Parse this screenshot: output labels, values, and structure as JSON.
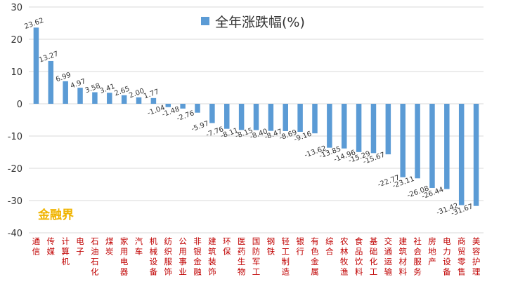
{
  "chart_data": {
    "type": "bar",
    "title": "全年涨跌幅(%)",
    "legend": {
      "label": "全年涨跌幅(%)",
      "placement": "top-center"
    },
    "watermark": "金融界",
    "colors": {
      "bar": "#5b9bd5",
      "category_text": "#c00000",
      "watermark": "#f0b400",
      "grid": "#d9d9d9"
    },
    "ylim": [
      -40,
      30
    ],
    "yticks": [
      30,
      20,
      10,
      0,
      -10,
      -20,
      -30,
      -40
    ],
    "grid": true,
    "categories": [
      "通信",
      "传媒",
      "计算机",
      "电子",
      "石油石化",
      "煤炭",
      "家用电器",
      "汽车",
      "机械设备",
      "纺织服饰",
      "公用事业",
      "非银金融",
      "建筑装饰",
      "环保",
      "医药生物",
      "国防军工",
      "钢铁",
      "轻工制造",
      "银行",
      "有色金属",
      "综合",
      "农林牧渔",
      "食品饮料",
      "基础化工",
      "交通运输",
      "建筑材料",
      "社会服务",
      "房地产",
      "电力设备",
      "商贸零售",
      "美容护理"
    ],
    "values": [
      23.62,
      13.27,
      6.99,
      4.97,
      3.58,
      3.41,
      2.65,
      2.0,
      1.77,
      -1.04,
      -1.48,
      -2.76,
      -5.97,
      -7.76,
      -8.11,
      -8.15,
      -8.4,
      -8.47,
      -8.69,
      -9.16,
      -13.62,
      -13.85,
      -14.96,
      -15.29,
      -15.67,
      -22.77,
      -23.11,
      -26.08,
      -26.44,
      -31.42,
      -31.67
    ],
    "value_labels": [
      "23.62",
      "13.27",
      "6.99",
      "4.97",
      "3.58",
      "3.41",
      "2.65",
      "2.00",
      "1.77",
      "-1.04",
      "-1.48",
      "-2.76",
      "-5.97",
      "-7.76",
      "-8.11",
      "-8.15",
      "-8.40",
      "-8.47",
      "-8.69",
      "-9.16",
      "-13.62",
      "-13.85",
      "-14.96",
      "-15.29",
      "-15.67",
      "-22.77",
      "-23.11",
      "-26.08",
      "-26.44",
      "-31.42",
      "-31.67"
    ]
  }
}
